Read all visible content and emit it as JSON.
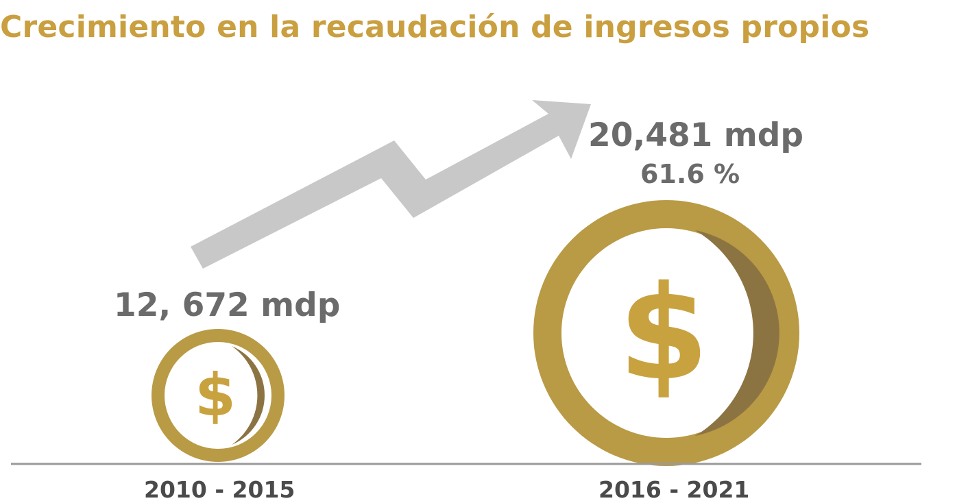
{
  "title": "Crecimiento en la recaudación de ingresos propios",
  "colors": {
    "title": "#c99f3f",
    "coin": "#b99a45",
    "coin_shadow": "#8c7442",
    "arrow": "#c8c8c8",
    "value_text": "#6b6b6b",
    "axis": "#9a9a9a"
  },
  "icons": [
    "dollar-coin-icon",
    "growth-arrow-icon"
  ],
  "chart_data": {
    "type": "bar",
    "title": "Crecimiento en la recaudación de ingresos propios",
    "categories": [
      "2010 - 2015",
      "2016 - 2021"
    ],
    "values": [
      12672,
      20481
    ],
    "unit": "mdp",
    "labels": {
      "value_1": "12, 672 mdp",
      "value_2": "20,481 mdp",
      "growth": "61.6 %"
    },
    "growth_percent": 61.6,
    "grid": false
  }
}
